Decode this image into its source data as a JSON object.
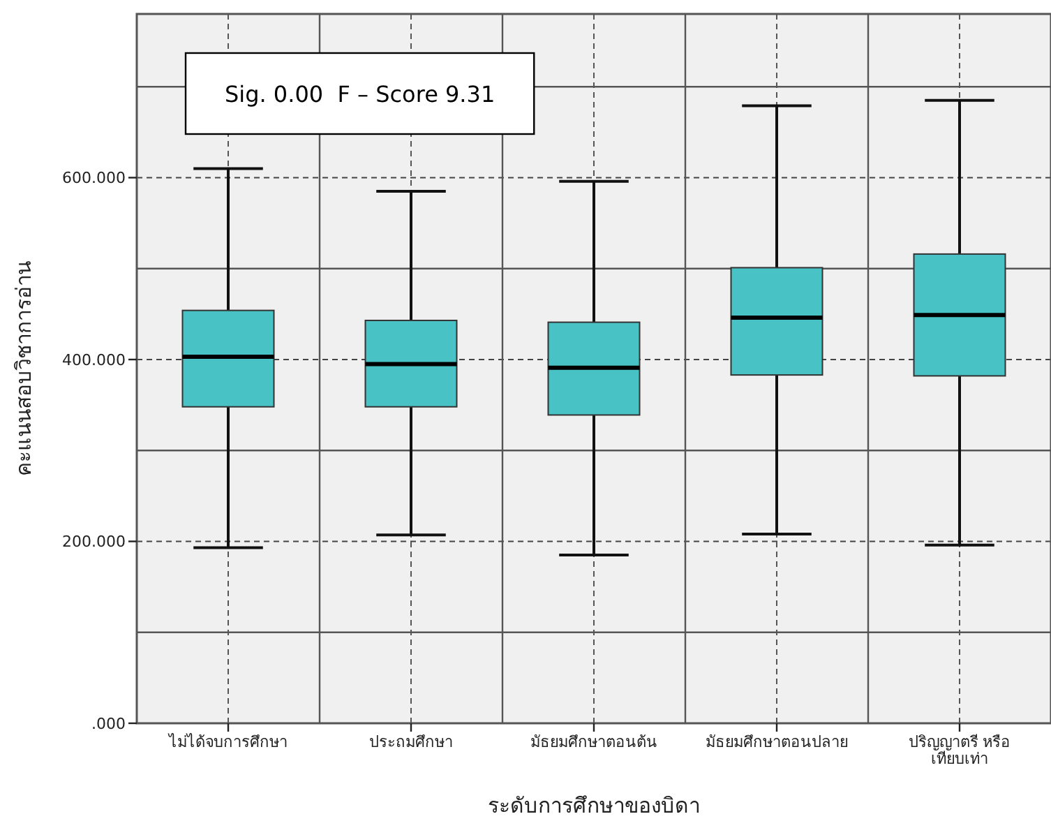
{
  "chart_data": {
    "type": "box",
    "xlabel": "ระดับการศึกษาของบิดา",
    "ylabel": "คะแนนสอบวิชาการอ่าน",
    "categories": [
      "ไม่ได้จบการศึกษา",
      "ประถมศึกษา",
      "มัธยมศึกษาตอนต้น",
      "มัธยมศึกษาตอนปลาย",
      "ปริญญาตรี หรือ เทียบเท่า"
    ],
    "color": "#48c2c5",
    "boxes": [
      {
        "low": 193,
        "q1": 348,
        "median": 403,
        "q3": 454,
        "high": 610
      },
      {
        "low": 207,
        "q1": 348,
        "median": 395,
        "q3": 443,
        "high": 585
      },
      {
        "low": 185,
        "q1": 339,
        "median": 391,
        "q3": 441,
        "high": 596
      },
      {
        "low": 208,
        "q1": 383,
        "median": 446,
        "q3": 501,
        "high": 679
      },
      {
        "low": 196,
        "q1": 382,
        "median": 449,
        "q3": 516,
        "high": 685
      }
    ],
    "ylim": [
      0,
      780
    ],
    "yticks": [
      {
        "value": 0,
        "label": ".000"
      },
      {
        "value": 200,
        "label": "200.000"
      },
      {
        "value": 400,
        "label": "400.000"
      },
      {
        "value": 600,
        "label": "600.000"
      }
    ],
    "grid": true,
    "annotations": [
      "Sig. 0.00  F – Score 9.31"
    ]
  }
}
